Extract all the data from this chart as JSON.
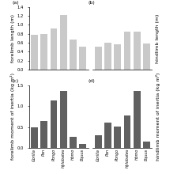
{
  "categories": [
    "Gorilla",
    "Pan",
    "Pongo",
    "Hylobates",
    "Homo",
    "Equus"
  ],
  "panel_a": {
    "label": "(a)",
    "ylabel": "forelimb length (m)",
    "ylabel_side": "left",
    "values": [
      0.78,
      0.8,
      0.92,
      1.22,
      0.68,
      0.52
    ],
    "ylim": [
      0,
      1.4
    ],
    "yticks": [
      0,
      0.2,
      0.4,
      0.6,
      0.8,
      1.0,
      1.2,
      1.4
    ],
    "color": "#c9c9c9"
  },
  "panel_b": {
    "label": "(b)",
    "ylabel": "hindlimb length (m)",
    "ylabel_side": "right",
    "values": [
      0.52,
      0.6,
      0.56,
      0.84,
      0.84,
      0.58
    ],
    "ylim": [
      0,
      1.4
    ],
    "yticks": [
      0,
      0.2,
      0.4,
      0.6,
      0.8,
      1.0,
      1.2,
      1.4
    ],
    "color": "#c9c9c9"
  },
  "panel_c": {
    "label": "(c)",
    "ylabel": "forelimb moment of inertia (kg m²)",
    "ylabel_side": "left",
    "values": [
      0.5,
      0.65,
      1.13,
      1.37,
      0.26,
      0.1
    ],
    "ylim": [
      0,
      1.5
    ],
    "yticks": [
      0,
      0.5,
      1.0,
      1.5
    ],
    "color": "#606060"
  },
  "panel_d": {
    "label": "(d)",
    "ylabel": "hindlimb moment of inertia (kg m²)",
    "ylabel_side": "right",
    "values": [
      0.3,
      0.6,
      0.52,
      0.78,
      1.37,
      0.15
    ],
    "ylim": [
      0,
      1.5
    ],
    "yticks": [
      0,
      0.5,
      1.0,
      1.5
    ],
    "color": "#606060"
  },
  "label_fontsize": 4.5,
  "tick_fontsize": 3.8,
  "xlabel_fontsize": 3.5
}
